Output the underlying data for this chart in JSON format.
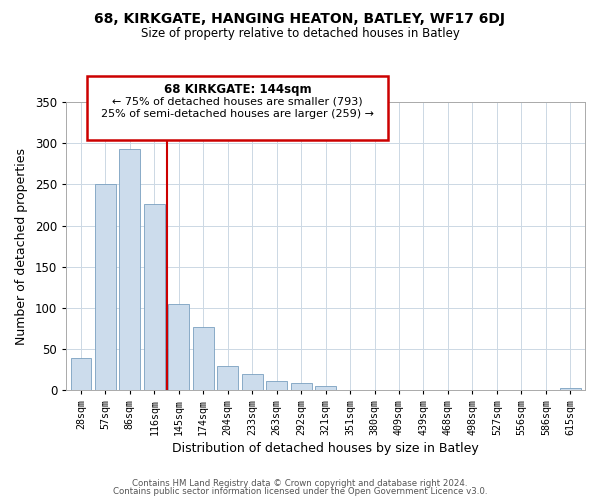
{
  "title": "68, KIRKGATE, HANGING HEATON, BATLEY, WF17 6DJ",
  "subtitle": "Size of property relative to detached houses in Batley",
  "xlabel": "Distribution of detached houses by size in Batley",
  "ylabel": "Number of detached properties",
  "bar_labels": [
    "28sqm",
    "57sqm",
    "86sqm",
    "116sqm",
    "145sqm",
    "174sqm",
    "204sqm",
    "233sqm",
    "263sqm",
    "292sqm",
    "321sqm",
    "351sqm",
    "380sqm",
    "409sqm",
    "439sqm",
    "468sqm",
    "498sqm",
    "527sqm",
    "556sqm",
    "586sqm",
    "615sqm"
  ],
  "bar_values": [
    39,
    250,
    293,
    226,
    104,
    77,
    29,
    19,
    11,
    9,
    5,
    0,
    0,
    0,
    0,
    0,
    0,
    0,
    0,
    0,
    2
  ],
  "bar_color": "#ccdcec",
  "bar_edge_color": "#7aa0c0",
  "vline_x": 3.5,
  "vline_color": "#cc0000",
  "ylim": [
    0,
    350
  ],
  "yticks": [
    0,
    50,
    100,
    150,
    200,
    250,
    300,
    350
  ],
  "annotation_title": "68 KIRKGATE: 144sqm",
  "annotation_line1": "← 75% of detached houses are smaller (793)",
  "annotation_line2": "25% of semi-detached houses are larger (259) →",
  "footer_line1": "Contains HM Land Registry data © Crown copyright and database right 2024.",
  "footer_line2": "Contains public sector information licensed under the Open Government Licence v3.0.",
  "bg_color": "#ffffff",
  "grid_color": "#ccd8e4"
}
